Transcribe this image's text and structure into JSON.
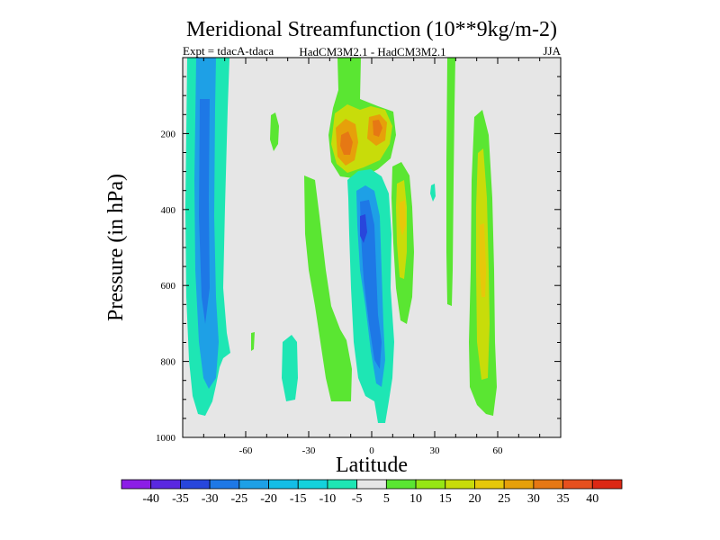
{
  "chart_data": {
    "type": "heatmap",
    "title": "Meridional Streamfunction (10**9kg/m-2)",
    "subtitle_left": "Expt = tdacA-tdaca",
    "subtitle_center": "HadCM3M2.1 - HadCM3M2.1",
    "subtitle_right": "JJA",
    "xlabel": "Latitude",
    "ylabel": "Pressure (in hPa)",
    "xlim": [
      -90,
      90
    ],
    "ylim": [
      1000,
      0
    ],
    "x_ticks": [
      -60,
      -30,
      0,
      30,
      60
    ],
    "x_tick_labels": [
      "-60",
      "-30",
      "0",
      "30",
      "60"
    ],
    "y_ticks": [
      200,
      400,
      600,
      800,
      1000
    ],
    "y_tick_labels": [
      "200",
      "400",
      "600",
      "800",
      "1000"
    ],
    "background_color": "#e6e6e6",
    "colorbar": {
      "boundaries": [
        -45,
        -40,
        -35,
        -30,
        -25,
        -20,
        -15,
        -10,
        -5,
        5,
        10,
        15,
        20,
        25,
        30,
        35,
        40,
        45
      ],
      "labels": [
        "-40",
        "-35",
        "-30",
        "-25",
        "-20",
        "-15",
        "-10",
        "-5",
        "5",
        "10",
        "15",
        "20",
        "25",
        "30",
        "35",
        "40"
      ],
      "colors": [
        "#8c1ee6",
        "#5a28e0",
        "#2846dc",
        "#1e78e6",
        "#1ea0e6",
        "#14bee6",
        "#14d2dc",
        "#1ee6b4",
        "#e6e6e6",
        "#5ae632",
        "#96e614",
        "#c8dc0a",
        "#e6c80a",
        "#e6a00a",
        "#e67814",
        "#e6501e",
        "#dc2814"
      ]
    },
    "features": [
      {
        "name": "SH cell outer",
        "lat": [
          -78,
          -62
        ],
        "p": [
          0,
          950
        ],
        "value": -10
      },
      {
        "name": "SH cell core",
        "lat": [
          -76,
          -68
        ],
        "p": [
          0,
          860
        ],
        "value": -20
      },
      {
        "name": "SH cell strong core",
        "lat": [
          -75,
          -71
        ],
        "p": [
          120,
          720
        ],
        "value": -25
      },
      {
        "name": "equatorial negative outer",
        "lat": [
          -10,
          10
        ],
        "p": [
          310,
          970
        ],
        "value": -10
      },
      {
        "name": "equatorial negative core",
        "lat": [
          -4,
          6
        ],
        "p": [
          330,
          880
        ],
        "value": -20
      },
      {
        "name": "equatorial negative strong",
        "lat": [
          -3,
          2
        ],
        "p": [
          400,
          500
        ],
        "value": -25
      },
      {
        "name": "upper tropical positive",
        "lat": [
          -18,
          10
        ],
        "p": [
          70,
          300
        ],
        "value": 15
      },
      {
        "name": "upper tropical max west",
        "lat": [
          -14,
          -8
        ],
        "p": [
          190,
          270
        ],
        "value": 30
      },
      {
        "name": "upper tropical max east",
        "lat": [
          0,
          6
        ],
        "p": [
          150,
          210
        ],
        "value": 30
      },
      {
        "name": "NH subtropical positive",
        "lat": [
          10,
          20
        ],
        "p": [
          280,
          600
        ],
        "value": 15
      },
      {
        "name": "NH midlatitude positive",
        "lat": [
          45,
          56
        ],
        "p": [
          110,
          960
        ],
        "value": 10
      },
      {
        "name": "NH midlatitude core",
        "lat": [
          49,
          54
        ],
        "p": [
          300,
          820
        ],
        "value": 15
      },
      {
        "name": "upper NH narrow positive",
        "lat": [
          34,
          37
        ],
        "p": [
          0,
          640
        ],
        "value": 5
      }
    ]
  }
}
